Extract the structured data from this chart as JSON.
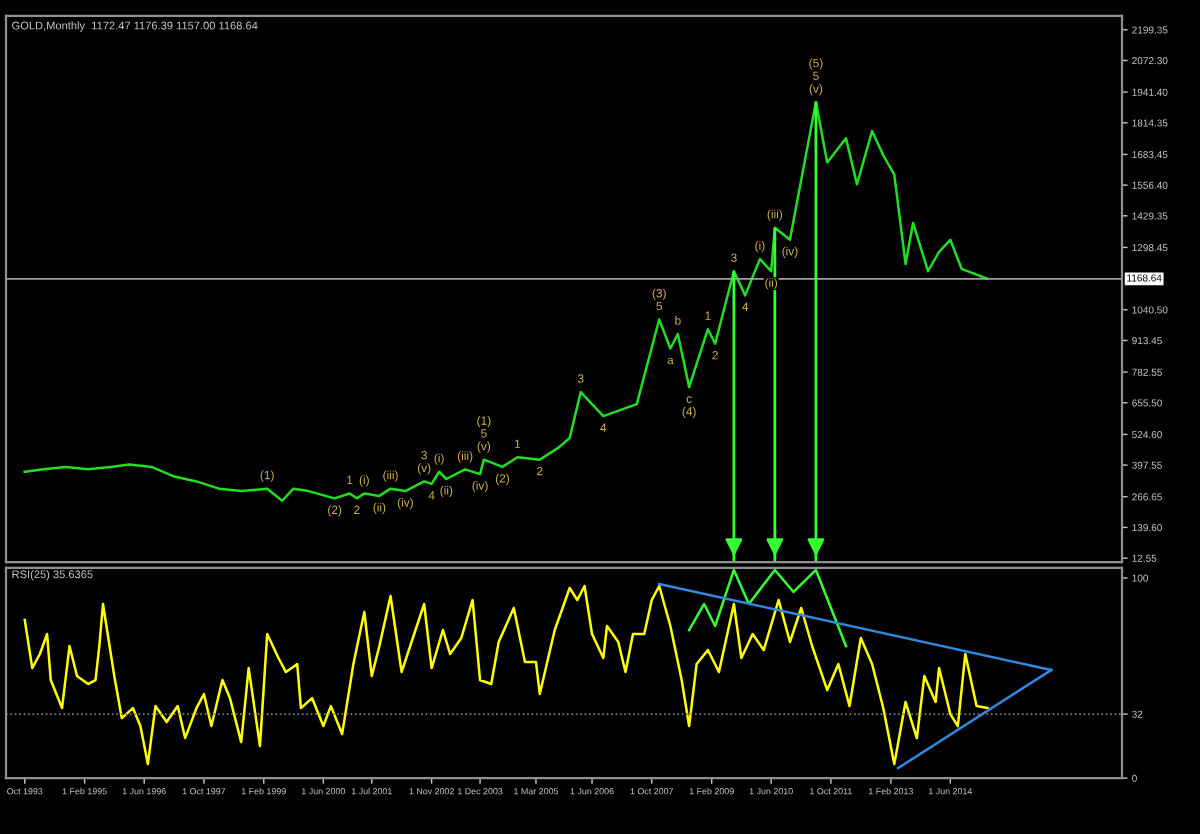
{
  "chart_data": [
    {
      "type": "line",
      "title": "GOLD,Monthly  1172.47 1176.39 1157.00 1168.64",
      "tick_labels": "y",
      "xlim": [
        "1993-05",
        "2018-04"
      ],
      "ylim": [
        -4,
        2257
      ],
      "yticks": [
        {
          "value": 2199.35,
          "label": "2199.35"
        },
        {
          "value": 2072.3,
          "label": "2072.30"
        },
        {
          "value": 1941.4,
          "label": "1941.40"
        },
        {
          "value": 1814.35,
          "label": "1814.35"
        },
        {
          "value": 1683.45,
          "label": "1683.45"
        },
        {
          "value": 1556.4,
          "label": "1556.40"
        },
        {
          "value": 1429.35,
          "label": "1429.35"
        },
        {
          "value": 1298.45,
          "label": "1298.45"
        },
        {
          "value": 1040.5,
          "label": "1040.50"
        },
        {
          "value": 913.45,
          "label": "913.45"
        },
        {
          "value": 782.55,
          "label": "782.55"
        },
        {
          "value": 655.5,
          "label": "655.50"
        },
        {
          "value": 524.6,
          "label": "524.60"
        },
        {
          "value": 397.55,
          "label": "397.55"
        },
        {
          "value": 266.65,
          "label": "266.65"
        },
        {
          "value": 139.6,
          "label": "139.60"
        },
        {
          "value": 12.55,
          "label": "12.55"
        }
      ],
      "series": [
        {
          "color": "#22dd22",
          "x": [
            "1993-10",
            "1994-03",
            "1994-09",
            "1995-03",
            "1995-09",
            "1996-02",
            "1996-08",
            "1997-02",
            "1997-08",
            "1998-02",
            "1998-08",
            "1999-03",
            "1999-07",
            "1999-10",
            "2000-02",
            "2000-09",
            "2001-01",
            "2001-03",
            "2001-05",
            "2001-09",
            "2001-12",
            "2002-04",
            "2002-09",
            "2002-11",
            "2003-01",
            "2003-03",
            "2003-08",
            "2003-12",
            "2004-01",
            "2004-06",
            "2004-10",
            "2005-04",
            "2005-09",
            "2005-12",
            "2006-03",
            "2006-09",
            "2007-06",
            "2007-12",
            "2008-03",
            "2008-05",
            "2008-08",
            "2009-01",
            "2009-03",
            "2009-08",
            "2009-11",
            "2010-03",
            "2010-06",
            "2010-07",
            "2010-11",
            "2011-06",
            "2011-09",
            "2012-02",
            "2012-05",
            "2012-09",
            "2012-12",
            "2013-03",
            "2013-06",
            "2013-08",
            "2013-12",
            "2014-03",
            "2014-06",
            "2014-09",
            "2015-04"
          ],
          "values": [
            370,
            380,
            390,
            380,
            390,
            400,
            390,
            350,
            330,
            300,
            290,
            300,
            250,
            300,
            290,
            260,
            280,
            260,
            280,
            270,
            300,
            290,
            330,
            320,
            370,
            340,
            380,
            360,
            420,
            390,
            430,
            420,
            470,
            510,
            700,
            600,
            650,
            1000,
            880,
            940,
            720,
            960,
            900,
            1200,
            1100,
            1250,
            1200,
            1380,
            1330,
            1900,
            1650,
            1750,
            1560,
            1780,
            1680,
            1600,
            1230,
            1400,
            1200,
            1280,
            1330,
            1210,
            1168.64
          ]
        }
      ],
      "ref_lines": [
        {
          "axis": "y",
          "value": 1168.64,
          "label": "1168.64",
          "color": "#a0a0a0",
          "line_style": "solid"
        },
        {
          "axis": "x",
          "value": "2009-08",
          "color": "#33ff33"
        },
        {
          "axis": "x",
          "value": "2010-07",
          "color": "#33ff33"
        },
        {
          "axis": "x",
          "value": "2011-06",
          "color": "#33ff33"
        }
      ],
      "annotations": [
        {
          "text": "(1)",
          "x": "1999-03",
          "y": 300
        },
        {
          "text": "(2)",
          "x": "2000-09",
          "y": 260
        },
        {
          "text": "1",
          "x": "2001-01",
          "y": 280
        },
        {
          "text": "2",
          "x": "2001-03",
          "y": 260
        },
        {
          "text": "(i)",
          "x": "2001-05",
          "y": 280
        },
        {
          "text": "(ii)",
          "x": "2001-09",
          "y": 270
        },
        {
          "text": "(iii)",
          "x": "2001-12",
          "y": 300
        },
        {
          "text": "(iv)",
          "x": "2002-04",
          "y": 290
        },
        {
          "text": "(v)",
          "x": "2002-09",
          "y": 330
        },
        {
          "text": "3",
          "x": "2002-09",
          "y": 330
        },
        {
          "text": "4",
          "x": "2002-11",
          "y": 320
        },
        {
          "text": "(i)",
          "x": "2003-01",
          "y": 370
        },
        {
          "text": "(ii)",
          "x": "2003-03",
          "y": 340
        },
        {
          "text": "(iii)",
          "x": "2003-08",
          "y": 380
        },
        {
          "text": "(iv)",
          "x": "2003-12",
          "y": 360
        },
        {
          "text": "(v)",
          "x": "2004-01",
          "y": 420
        },
        {
          "text": "5",
          "x": "2004-01",
          "y": 420
        },
        {
          "text": "(1)",
          "x": "2004-01",
          "y": 420
        },
        {
          "text": "(2)",
          "x": "2004-06",
          "y": 390
        },
        {
          "text": "1",
          "x": "2004-10",
          "y": 430
        },
        {
          "text": "2",
          "x": "2005-04",
          "y": 420
        },
        {
          "text": "3",
          "x": "2006-03",
          "y": 700
        },
        {
          "text": "4",
          "x": "2006-09",
          "y": 600
        },
        {
          "text": "5",
          "x": "2007-12",
          "y": 1000
        },
        {
          "text": "(3)",
          "x": "2007-12",
          "y": 1000
        },
        {
          "text": "a",
          "x": "2008-03",
          "y": 880
        },
        {
          "text": "b",
          "x": "2008-05",
          "y": 940
        },
        {
          "text": "c",
          "x": "2008-08",
          "y": 720
        },
        {
          "text": "(4)",
          "x": "2008-08",
          "y": 720
        },
        {
          "text": "1",
          "x": "2009-01",
          "y": 960
        },
        {
          "text": "2",
          "x": "2009-03",
          "y": 900
        },
        {
          "text": "3",
          "x": "2009-08",
          "y": 1200
        },
        {
          "text": "4",
          "x": "2009-11",
          "y": 1100
        },
        {
          "text": "(i)",
          "x": "2010-03",
          "y": 1250
        },
        {
          "text": "(ii)",
          "x": "2010-06",
          "y": 1200
        },
        {
          "text": "(iii)",
          "x": "2010-07",
          "y": 1380
        },
        {
          "text": "(iv)",
          "x": "2010-11",
          "y": 1330
        },
        {
          "text": "(v)",
          "x": "2011-06",
          "y": 1900
        },
        {
          "text": "5",
          "x": "2011-06",
          "y": 1900
        },
        {
          "text": "(5)",
          "x": "2011-06",
          "y": 1900
        }
      ]
    },
    {
      "type": "line",
      "title": "RSI(25) 35.6365",
      "xlim": [
        "1993-05",
        "2018-04"
      ],
      "ylim": [
        0,
        105
      ],
      "yticks": [
        0,
        32,
        100
      ],
      "xticks": [
        {
          "value": "1993-10",
          "label": "Oct 1993"
        },
        {
          "value": "1995-02",
          "label": "1 Feb 1995"
        },
        {
          "value": "1996-06",
          "label": "1 Jun 1996"
        },
        {
          "value": "1997-10",
          "label": "1 Oct 1997"
        },
        {
          "value": "1999-02",
          "label": "1 Feb 1999"
        },
        {
          "value": "2000-06",
          "label": "1 Jun 2000"
        },
        {
          "value": "2001-07",
          "label": "1 Jul 2001"
        },
        {
          "value": "2002-11",
          "label": "1 Nov 2002"
        },
        {
          "value": "2003-12",
          "label": "1 Dec 2003"
        },
        {
          "value": "2005-03",
          "label": "1 Mar 2005"
        },
        {
          "value": "2006-06",
          "label": "1 Jun 2006"
        },
        {
          "value": "2007-10",
          "label": "1 Oct 2007"
        },
        {
          "value": "2009-02",
          "label": "1 Feb 2009"
        },
        {
          "value": "2010-06",
          "label": "1 Jun 2010"
        },
        {
          "value": "2011-10",
          "label": "1 Oct 2011"
        },
        {
          "value": "2013-02",
          "label": "1 Feb 2013"
        },
        {
          "value": "2014-06",
          "label": "1 Jun 2014"
        }
      ],
      "ref_lines": [
        {
          "axis": "y",
          "value": 32,
          "color": "#808080",
          "line_style": "dotted"
        }
      ],
      "series": [
        {
          "color": "#ffff00",
          "x": [
            "1993-10",
            "1993-12",
            "1994-02",
            "1994-04",
            "1994-05",
            "1994-08",
            "1994-10",
            "1994-12",
            "1995-03",
            "1995-05",
            "1995-06",
            "1995-07",
            "1995-10",
            "1995-12",
            "1996-03",
            "1996-05",
            "1996-07",
            "1996-09",
            "1996-12",
            "1997-03",
            "1997-05",
            "1997-08",
            "1997-10",
            "1997-12",
            "1998-03",
            "1998-05",
            "1998-08",
            "1998-10",
            "1999-01",
            "1999-03",
            "1999-06",
            "1999-08",
            "1999-11",
            "1999-12",
            "2000-03",
            "2000-06",
            "2000-08",
            "2000-11",
            "2001-02",
            "2001-05",
            "2001-07",
            "2001-09",
            "2001-12",
            "2002-03",
            "2002-06",
            "2002-09",
            "2002-11",
            "2003-02",
            "2003-04",
            "2003-07",
            "2003-10",
            "2003-12",
            "2004-03",
            "2004-05",
            "2004-09",
            "2004-12",
            "2005-03",
            "2005-04",
            "2005-08",
            "2005-12",
            "2006-02",
            "2006-04",
            "2006-06",
            "2006-09",
            "2006-10",
            "2007-01",
            "2007-03",
            "2007-05",
            "2007-08",
            "2007-10",
            "2007-12",
            "2008-03",
            "2008-06",
            "2008-08",
            "2008-10",
            "2009-01",
            "2009-04",
            "2009-08",
            "2009-10",
            "2010-01",
            "2010-04",
            "2010-08",
            "2010-11",
            "2011-02",
            "2011-05",
            "2011-09",
            "2011-12",
            "2012-03",
            "2012-06",
            "2012-09",
            "2012-12",
            "2013-03",
            "2013-06",
            "2013-09",
            "2013-11",
            "2014-02",
            "2014-03",
            "2014-06",
            "2014-08",
            "2014-10",
            "2015-01",
            "2015-04"
          ],
          "values": [
            79,
            55,
            62,
            72,
            49,
            35,
            66,
            51,
            47,
            49,
            66,
            87,
            51,
            30,
            35,
            26,
            7,
            36,
            28,
            36,
            20,
            35,
            42,
            26,
            49,
            40,
            18,
            55,
            16,
            72,
            60,
            53,
            57,
            35,
            40,
            26,
            36,
            22,
            57,
            83,
            51,
            66,
            91,
            53,
            70,
            87,
            55,
            74,
            62,
            70,
            89,
            49,
            47,
            68,
            85,
            58,
            58,
            42,
            74,
            95,
            89,
            96,
            72,
            60,
            76,
            68,
            53,
            72,
            72,
            89,
            96,
            76,
            49,
            26,
            57,
            64,
            53,
            87,
            60,
            72,
            64,
            89,
            68,
            85,
            66,
            44,
            57,
            36,
            70,
            57,
            35,
            7,
            38,
            20,
            51,
            38,
            55,
            32,
            26,
            62,
            36,
            35
          ]
        },
        {
          "color": "#33ff33",
          "x": [
            "2008-08",
            "2008-12",
            "2009-03",
            "2009-08",
            "2009-12",
            "2010-07",
            "2010-12",
            "2011-06",
            "2012-02"
          ],
          "values": [
            74,
            87,
            76,
            104,
            87,
            104,
            93,
            104,
            66
          ]
        },
        {
          "color": "#3388dd",
          "x": [
            "2007-12",
            "2016-09"
          ],
          "values": [
            97,
            54
          ]
        },
        {
          "color": "#3388dd",
          "x": [
            "2013-04",
            "2016-09"
          ],
          "values": [
            5,
            54
          ]
        }
      ]
    }
  ]
}
